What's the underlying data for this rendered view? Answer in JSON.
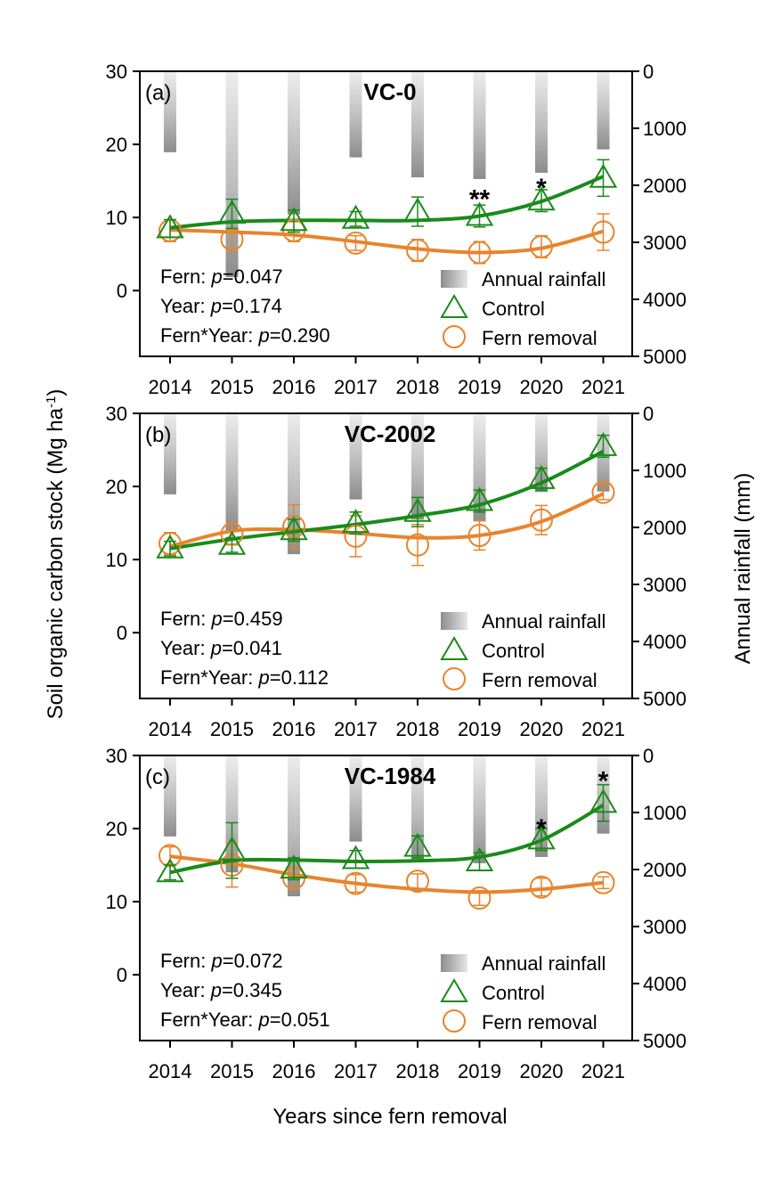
{
  "figure": {
    "ylabel_left": "Soil organic carbon stock (Mg ha",
    "ylabel_left_sup": "-1",
    "ylabel_left_close": ")",
    "ylabel_right": "Annual rainfall (mm)",
    "xlabel": "Years since fern removal"
  },
  "legend": {
    "rainfall": "Annual rainfall",
    "control": "Control",
    "fern_removal": "Fern removal"
  },
  "colors": {
    "control": "#1a8a1a",
    "fern_removal": "#e8842c",
    "axis": "#000000"
  },
  "chart_data": [
    {
      "type": "line",
      "panel_label": "(a)",
      "title": "VC-0",
      "categories": [
        "2014",
        "2015",
        "2016",
        "2017",
        "2018",
        "2019",
        "2020",
        "2021"
      ],
      "ylim": [
        -9,
        30
      ],
      "yticks": [
        0,
        10,
        20,
        30
      ],
      "y2lim": [
        0,
        5000
      ],
      "y2ticks": [
        0,
        1000,
        2000,
        3000,
        4000,
        5000
      ],
      "rainfall_mm": [
        1420,
        3610,
        2510,
        1510,
        1860,
        1890,
        1780,
        1370
      ],
      "series": [
        {
          "name": "Control",
          "values": [
            8.5,
            10.5,
            9.5,
            9.8,
            10.8,
            10.2,
            12.3,
            15.4
          ],
          "errors": [
            1.2,
            2.0,
            1.5,
            1.0,
            2.0,
            1.5,
            1.5,
            2.5
          ],
          "trend": [
            8.6,
            9.4,
            9.6,
            9.6,
            9.6,
            10.2,
            12.2,
            15.6
          ]
        },
        {
          "name": "Fern removal",
          "values": [
            8.2,
            7.0,
            8.2,
            6.5,
            5.5,
            5.2,
            6.0,
            8.0
          ],
          "errors": [
            1.5,
            1.5,
            1.5,
            1.0,
            1.5,
            1.5,
            1.5,
            2.5
          ],
          "trend": [
            8.3,
            8.0,
            7.6,
            6.7,
            5.7,
            5.2,
            5.8,
            8.1
          ]
        }
      ],
      "significance": [
        {
          "category": "2019",
          "mark": "**",
          "y": 13.0
        },
        {
          "category": "2020",
          "mark": "*",
          "y": 14.5
        }
      ],
      "stats": [
        {
          "term": "Fern: ",
          "p": "0.047"
        },
        {
          "term": "Year: ",
          "p": "0.174"
        },
        {
          "term": "Fern*Year: ",
          "p": "0.290"
        }
      ]
    },
    {
      "type": "line",
      "panel_label": "(b)",
      "title": "VC-2002",
      "categories": [
        "2014",
        "2015",
        "2016",
        "2017",
        "2018",
        "2019",
        "2020",
        "2021"
      ],
      "ylim": [
        -9,
        30
      ],
      "yticks": [
        0,
        10,
        20,
        30
      ],
      "y2lim": [
        0,
        5000
      ],
      "y2ticks": [
        0,
        1000,
        2000,
        3000,
        4000,
        5000
      ],
      "rainfall_mm": [
        1420,
        2050,
        2470,
        1510,
        1860,
        1890,
        1380,
        1370
      ],
      "series": [
        {
          "name": "Control",
          "values": [
            11.5,
            12.0,
            14.0,
            15.0,
            16.5,
            18.0,
            21.0,
            25.5
          ],
          "errors": [
            1.0,
            1.0,
            1.5,
            1.5,
            2.0,
            1.5,
            1.5,
            1.5
          ],
          "trend": [
            11.5,
            12.8,
            13.8,
            14.8,
            16.0,
            17.5,
            20.5,
            24.8
          ]
        },
        {
          "name": "Fern removal",
          "values": [
            12.2,
            13.5,
            14.5,
            13.2,
            12.0,
            13.3,
            15.4,
            19.2
          ],
          "errors": [
            1.5,
            1.5,
            3.0,
            2.8,
            2.8,
            2.0,
            2.0,
            1.0
          ],
          "trend": [
            11.8,
            13.9,
            14.1,
            13.6,
            13.0,
            13.3,
            15.2,
            19.0
          ]
        }
      ],
      "significance": [],
      "stats": [
        {
          "term": "Fern: ",
          "p": "0.459"
        },
        {
          "term": "Year: ",
          "p": "0.041"
        },
        {
          "term": "Fern*Year: ",
          "p": "0.112"
        }
      ]
    },
    {
      "type": "line",
      "panel_label": "(c)",
      "title": "VC-1984",
      "categories": [
        "2014",
        "2015",
        "2016",
        "2017",
        "2018",
        "2019",
        "2020",
        "2021"
      ],
      "ylim": [
        -9,
        30
      ],
      "yticks": [
        0,
        10,
        20,
        30
      ],
      "y2lim": [
        0,
        5000
      ],
      "y2ticks": [
        0,
        1000,
        2000,
        3000,
        4000,
        5000
      ],
      "rainfall_mm": [
        1420,
        2050,
        2470,
        1510,
        1860,
        1890,
        1780,
        1370
      ],
      "series": [
        {
          "name": "Control",
          "values": [
            14.0,
            17.0,
            14.5,
            15.8,
            17.5,
            15.5,
            18.5,
            23.5
          ],
          "errors": [
            1.0,
            3.8,
            1.5,
            1.2,
            1.5,
            1.2,
            1.5,
            2.5
          ],
          "trend": [
            14.0,
            15.6,
            15.7,
            15.5,
            15.6,
            16.1,
            18.4,
            23.2
          ]
        },
        {
          "name": "Fern removal",
          "values": [
            16.3,
            15.0,
            13.2,
            12.5,
            12.8,
            10.5,
            12.0,
            12.6
          ],
          "errors": [
            1.2,
            3.0,
            1.5,
            1.2,
            1.0,
            1.0,
            1.2,
            0.8
          ],
          "trend": [
            16.2,
            15.2,
            13.7,
            12.5,
            11.7,
            11.3,
            11.7,
            12.6
          ]
        }
      ],
      "significance": [
        {
          "category": "2020",
          "mark": "*",
          "y": 20.5
        },
        {
          "category": "2021",
          "mark": "*",
          "y": 27.0
        }
      ],
      "stats": [
        {
          "term": "Fern: ",
          "p": "0.072"
        },
        {
          "term": "Year: ",
          "p": "0.345"
        },
        {
          "term": "Fern*Year: ",
          "p": "0.051"
        }
      ]
    }
  ]
}
